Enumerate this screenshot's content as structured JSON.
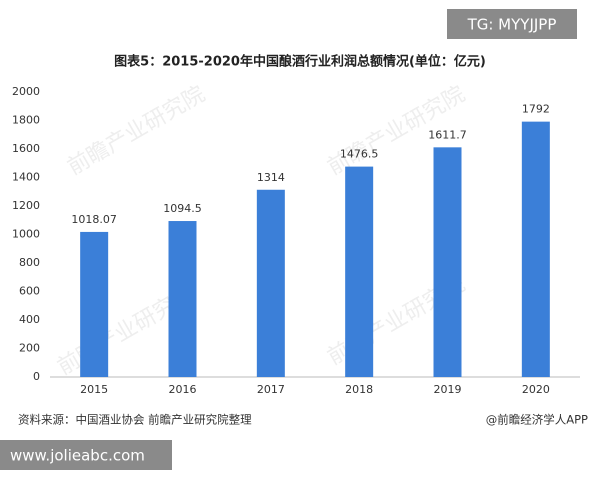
{
  "chart_data": {
    "type": "bar",
    "title": "图表5：2015-2020年中国酿酒行业利润总额情况(单位：亿元)",
    "categories": [
      "2015",
      "2016",
      "2017",
      "2018",
      "2019",
      "2020"
    ],
    "values": [
      1018.07,
      1094.5,
      1314,
      1476.5,
      1611.7,
      1792
    ],
    "color": "#3b7fd8",
    "ylim": [
      0,
      2000
    ],
    "yticks": [
      0,
      200,
      400,
      600,
      800,
      1000,
      1200,
      1400,
      1600,
      1800,
      2000
    ],
    "grid": false,
    "source": "资料来源：中国酒业协会 前瞻产业研究院整理",
    "credit": "@前瞻经济学人APP",
    "badge": "TG: MYYJJPP",
    "watermark": "前瞻产业研究院",
    "site": "www.jolieabc.com"
  }
}
